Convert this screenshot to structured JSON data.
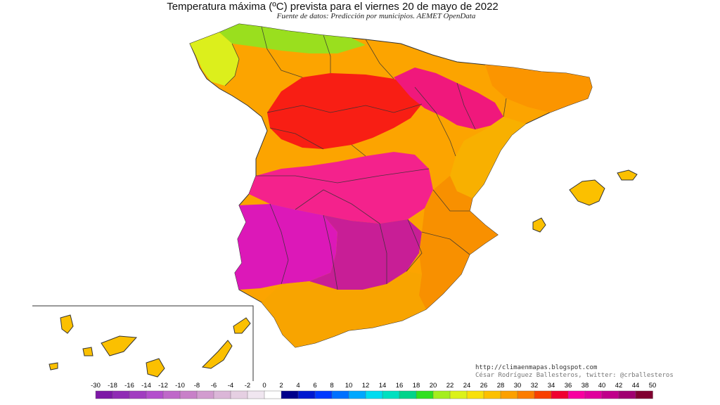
{
  "title": "Temperatura máxima (ºC) prevista para el viernes 20 de mayo de 2022",
  "subtitle": "Fuente de datos: Predicción por municipios. AEMET OpenData",
  "credits": {
    "url": "http://climaenmapas.blogspot.com",
    "author": "César Rodríguez Ballesteros, twitter: @crballesteros"
  },
  "legend": {
    "labels": [
      "-30",
      "-18",
      "-16",
      "-14",
      "-12",
      "-10",
      "-8",
      "-6",
      "-4",
      "-2",
      "0",
      "2",
      "4",
      "6",
      "8",
      "10",
      "12",
      "14",
      "16",
      "18",
      "20",
      "22",
      "24",
      "26",
      "28",
      "30",
      "32",
      "34",
      "36",
      "38",
      "40",
      "42",
      "44",
      "50"
    ],
    "colors": [
      "#7d18a6",
      "#8f2bb4",
      "#a13dc0",
      "#b34fcc",
      "#bf68c9",
      "#c880c8",
      "#d29ccf",
      "#dbb6d8",
      "#e5cfe2",
      "#f0e6f0",
      "#ffffff",
      "#00008b",
      "#0018d0",
      "#0038ff",
      "#0070ff",
      "#00a8ff",
      "#00dcf0",
      "#00e0c0",
      "#00d48a",
      "#30e020",
      "#a4ee1e",
      "#dcf21a",
      "#f8e00c",
      "#fcc000",
      "#fca000",
      "#fc7c00",
      "#f84000",
      "#f00030",
      "#f800a0",
      "#e0009c",
      "#c0008a",
      "#a00070",
      "#800030"
    ]
  },
  "regions": {
    "colors": {
      "north_coast": "#9adf1e",
      "north_cool": "#dcef1c",
      "plateau_north": "#fca400",
      "duero": "#f81e14",
      "ebro": "#f0187c",
      "pyrenees": "#fb9500",
      "catalonia": "#f8b000",
      "center": "#f4228c",
      "extremadura": "#dc18b8",
      "guadalquivir": "#c81e96",
      "east_coast": "#f89000",
      "south_coast": "#f8a400",
      "islands": "#fbc000"
    }
  }
}
